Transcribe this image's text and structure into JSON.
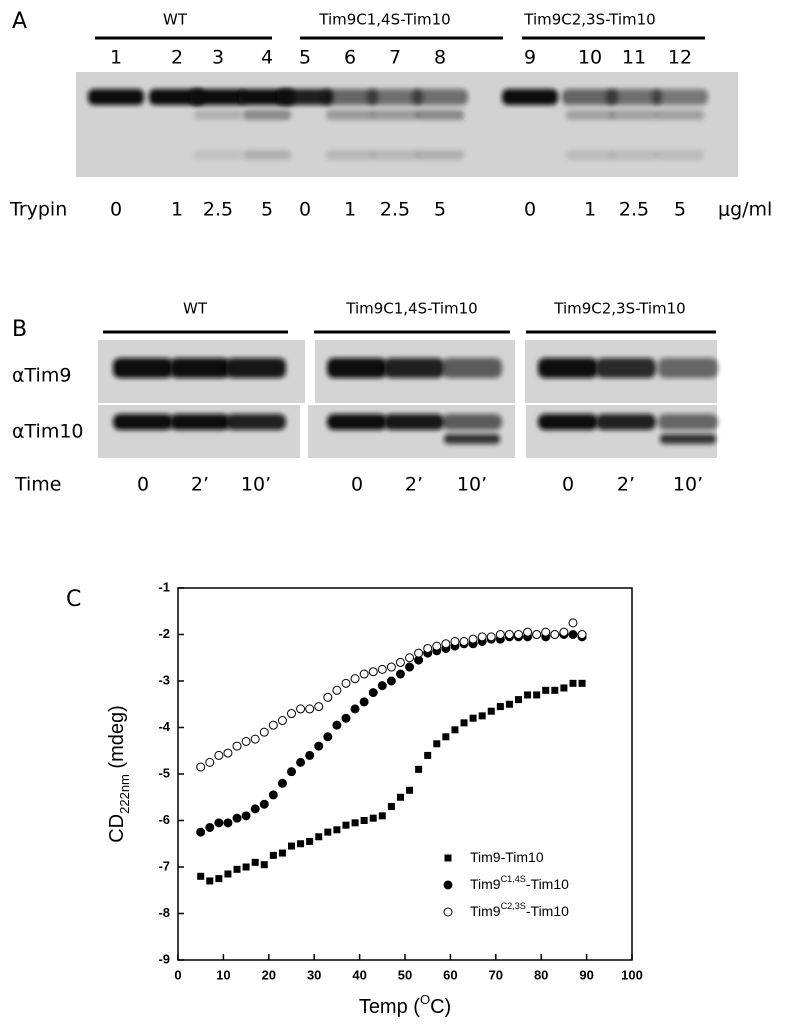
{
  "panel_a": {
    "label": "A",
    "groups": [
      "WT",
      "Tim9C1,4S-Tim10",
      "Tim9C2,3S-Tim10"
    ],
    "lanes": [
      "1",
      "2",
      "3",
      "4",
      "5",
      "6",
      "7",
      "8",
      "9",
      "10",
      "11",
      "12"
    ],
    "row_label": "Trypin",
    "doses": [
      "0",
      "1",
      "2.5",
      "5",
      "0",
      "1",
      "2.5",
      "5",
      "0",
      "1",
      "2.5",
      "5"
    ],
    "unit": "μg/ml"
  },
  "panel_b": {
    "label": "B",
    "groups": [
      "WT",
      "Tim9C1,4S-Tim10",
      "Tim9C2,3S-Tim10"
    ],
    "rows": [
      "αTim9",
      "αTim10"
    ],
    "row_label": "Time",
    "times": [
      "0",
      "2’",
      "10’",
      "0",
      "2’",
      "10’",
      "0",
      "2’",
      "10’"
    ]
  },
  "panel_c_label": "C",
  "chart_data": {
    "type": "scatter",
    "xlabel": [
      "Temp (",
      "O",
      "C)"
    ],
    "ylabel": [
      "CD",
      "222nm",
      " (mdeg)"
    ],
    "xlim": [
      0,
      100
    ],
    "ylim": [
      -9,
      -1
    ],
    "xticks": [
      0,
      10,
      20,
      30,
      40,
      50,
      60,
      70,
      80,
      90,
      100
    ],
    "yticks": [
      -9,
      -8,
      -7,
      -6,
      -5,
      -4,
      -3,
      -2,
      -1
    ],
    "x": [
      5,
      7,
      9,
      11,
      13,
      15,
      17,
      19,
      21,
      23,
      25,
      27,
      29,
      31,
      33,
      35,
      37,
      39,
      41,
      43,
      45,
      47,
      49,
      51,
      53,
      55,
      57,
      59,
      61,
      63,
      65,
      67,
      69,
      71,
      73,
      75,
      77,
      79,
      81,
      83,
      85,
      87,
      89
    ],
    "legend": "lower right",
    "series": [
      {
        "name": [
          "Tim9-Tim10"
        ],
        "marker": "square",
        "color": "#000000",
        "values": [
          -7.2,
          -7.3,
          -7.25,
          -7.15,
          -7.05,
          -7.0,
          -6.9,
          -6.95,
          -6.75,
          -6.7,
          -6.55,
          -6.5,
          -6.45,
          -6.35,
          -6.25,
          -6.2,
          -6.1,
          -6.05,
          -6.0,
          -5.95,
          -5.9,
          -5.7,
          -5.5,
          -5.35,
          -4.9,
          -4.6,
          -4.35,
          -4.2,
          -4.05,
          -3.9,
          -3.8,
          -3.75,
          -3.65,
          -3.55,
          -3.5,
          -3.4,
          -3.3,
          -3.3,
          -3.2,
          -3.2,
          -3.15,
          -3.05,
          -3.05
        ]
      },
      {
        "name": [
          "Tim9",
          "C1,4S",
          "-Tim10"
        ],
        "marker": "circle",
        "color": "#000000",
        "values": [
          -6.25,
          -6.15,
          -6.05,
          -6.05,
          -5.95,
          -5.9,
          -5.75,
          -5.65,
          -5.45,
          -5.2,
          -4.95,
          -4.75,
          -4.6,
          -4.4,
          -4.2,
          -3.95,
          -3.8,
          -3.6,
          -3.45,
          -3.25,
          -3.1,
          -3.0,
          -2.85,
          -2.7,
          -2.55,
          -2.4,
          -2.35,
          -2.3,
          -2.25,
          -2.2,
          -2.2,
          -2.15,
          -2.1,
          -2.1,
          -2.05,
          -2.05,
          -2.05,
          -2.0,
          -2.05,
          -2.0,
          -2.0,
          -2.0,
          -2.05
        ]
      },
      {
        "name": [
          "Tim9",
          "C2,3S",
          "-Tim10"
        ],
        "marker": "open-circle",
        "color": "#000000",
        "values": [
          -4.85,
          -4.75,
          -4.6,
          -4.55,
          -4.4,
          -4.3,
          -4.25,
          -4.1,
          -3.95,
          -3.85,
          -3.7,
          -3.6,
          -3.6,
          -3.55,
          -3.35,
          -3.2,
          -3.05,
          -2.95,
          -2.85,
          -2.8,
          -2.75,
          -2.7,
          -2.6,
          -2.5,
          -2.4,
          -2.3,
          -2.25,
          -2.2,
          -2.15,
          -2.15,
          -2.1,
          -2.05,
          -2.05,
          -2.0,
          -2.0,
          -2.0,
          -1.95,
          -2.0,
          -1.95,
          -2.0,
          -1.95,
          -1.75,
          -2.0
        ]
      }
    ]
  }
}
